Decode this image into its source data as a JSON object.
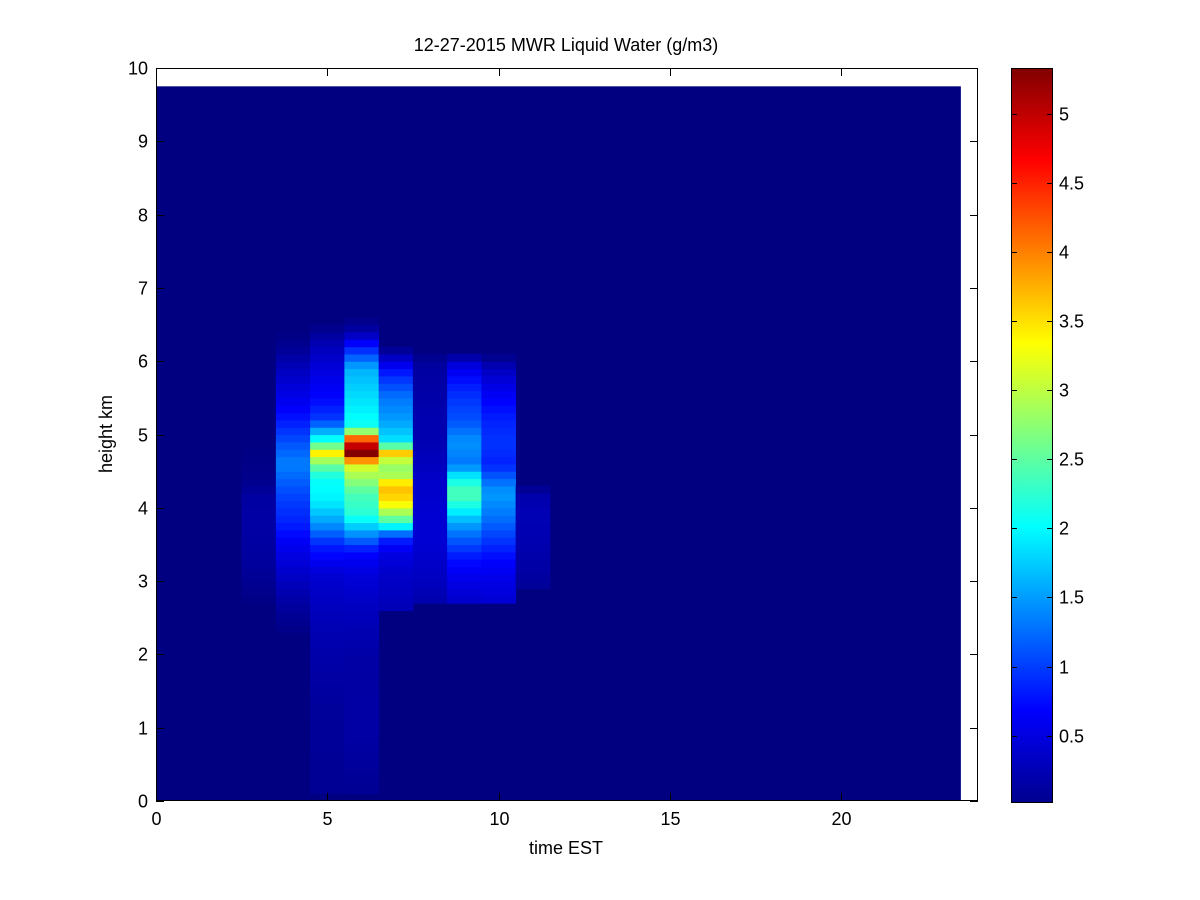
{
  "chart_data": {
    "type": "heatmap",
    "title": "12-27-2015 MWR Liquid Water (g/m3)",
    "xlabel": "time EST",
    "ylabel": "height km",
    "xlim": [
      0,
      24
    ],
    "ylim": [
      0,
      10
    ],
    "x_ticks": [
      0,
      5,
      10,
      15,
      20
    ],
    "y_ticks": [
      0,
      1,
      2,
      3,
      4,
      5,
      6,
      7,
      8,
      9,
      10
    ],
    "data_extent": {
      "x": [
        0,
        23.5
      ],
      "y": [
        0,
        9.75
      ]
    },
    "background_value": 0.02,
    "time_cells": [
      {
        "x": [
          2.5,
          3.5
        ],
        "profile": [
          [
            2.7,
            0.04
          ],
          [
            3.0,
            0.12
          ],
          [
            3.3,
            0.18
          ],
          [
            3.6,
            0.2
          ],
          [
            3.9,
            0.22
          ],
          [
            4.2,
            0.18
          ],
          [
            4.4,
            0.08
          ],
          [
            5.0,
            0.02
          ]
        ]
      },
      {
        "x": [
          3.5,
          4.5
        ],
        "profile": [
          [
            2.3,
            0.05
          ],
          [
            2.7,
            0.2
          ],
          [
            3.0,
            0.35
          ],
          [
            3.5,
            0.6
          ],
          [
            3.8,
            0.85
          ],
          [
            4.2,
            1.05
          ],
          [
            4.6,
            1.35
          ],
          [
            4.9,
            1.1
          ],
          [
            5.3,
            0.7
          ],
          [
            5.8,
            0.4
          ],
          [
            6.2,
            0.12
          ],
          [
            6.4,
            0.03
          ]
        ]
      },
      {
        "x": [
          4.5,
          5.5
        ],
        "profile": [
          [
            0.1,
            0.12
          ],
          [
            0.6,
            0.14
          ],
          [
            1.2,
            0.16
          ],
          [
            1.6,
            0.2
          ],
          [
            2.0,
            0.24
          ],
          [
            2.4,
            0.3
          ],
          [
            2.8,
            0.38
          ],
          [
            3.1,
            0.45
          ],
          [
            3.5,
            0.85
          ],
          [
            3.8,
            1.5
          ],
          [
            4.1,
            1.95
          ],
          [
            4.4,
            2.05
          ],
          [
            4.6,
            2.6
          ],
          [
            4.75,
            3.4
          ],
          [
            4.9,
            2.2
          ],
          [
            5.2,
            1.0
          ],
          [
            5.5,
            0.7
          ],
          [
            5.9,
            0.5
          ],
          [
            6.3,
            0.25
          ],
          [
            6.5,
            0.03
          ]
        ]
      },
      {
        "x": [
          5.5,
          6.5
        ],
        "profile": [
          [
            0.1,
            0.12
          ],
          [
            0.8,
            0.2
          ],
          [
            1.2,
            0.22
          ],
          [
            1.6,
            0.2
          ],
          [
            2.0,
            0.22
          ],
          [
            2.4,
            0.3
          ],
          [
            2.8,
            0.4
          ],
          [
            3.1,
            0.5
          ],
          [
            3.4,
            0.7
          ],
          [
            3.6,
            1.3
          ],
          [
            3.9,
            2.2
          ],
          [
            4.2,
            2.4
          ],
          [
            4.4,
            2.8
          ],
          [
            4.6,
            3.2
          ],
          [
            4.75,
            5.3
          ],
          [
            4.9,
            4.8
          ],
          [
            5.1,
            2.1
          ],
          [
            5.5,
            1.85
          ],
          [
            5.9,
            1.6
          ],
          [
            6.2,
            0.8
          ],
          [
            6.4,
            0.25
          ],
          [
            6.6,
            0.03
          ]
        ]
      },
      {
        "x": [
          6.5,
          7.5
        ],
        "profile": [
          [
            2.6,
            0.3
          ],
          [
            2.8,
            0.35
          ],
          [
            3.1,
            0.4
          ],
          [
            3.4,
            0.55
          ],
          [
            3.6,
            0.9
          ],
          [
            3.8,
            2.3
          ],
          [
            4.0,
            3.1
          ],
          [
            4.1,
            3.5
          ],
          [
            4.3,
            3.7
          ],
          [
            4.45,
            2.9
          ],
          [
            4.6,
            2.75
          ],
          [
            4.75,
            3.6
          ],
          [
            4.9,
            1.9
          ],
          [
            5.2,
            1.5
          ],
          [
            5.5,
            1.3
          ],
          [
            5.8,
            0.9
          ],
          [
            6.0,
            0.5
          ],
          [
            6.2,
            0.03
          ]
        ]
      },
      {
        "x": [
          7.5,
          8.5
        ],
        "profile": [
          [
            2.7,
            0.25
          ],
          [
            3.0,
            0.35
          ],
          [
            3.5,
            0.45
          ],
          [
            4.0,
            0.45
          ],
          [
            4.4,
            0.4
          ],
          [
            4.8,
            0.3
          ],
          [
            5.4,
            0.25
          ],
          [
            6.0,
            0.18
          ],
          [
            6.1,
            0.03
          ]
        ]
      },
      {
        "x": [
          8.5,
          9.5
        ],
        "profile": [
          [
            2.7,
            0.4
          ],
          [
            3.0,
            0.55
          ],
          [
            3.3,
            0.75
          ],
          [
            3.6,
            1.2
          ],
          [
            3.8,
            1.55
          ],
          [
            4.0,
            2.05
          ],
          [
            4.2,
            2.45
          ],
          [
            4.4,
            2.05
          ],
          [
            4.6,
            1.3
          ],
          [
            4.9,
            1.45
          ],
          [
            5.2,
            1.1
          ],
          [
            5.5,
            0.95
          ],
          [
            5.7,
            0.8
          ],
          [
            6.0,
            0.45
          ],
          [
            6.1,
            0.03
          ]
        ]
      },
      {
        "x": [
          9.5,
          10.5
        ],
        "profile": [
          [
            2.7,
            0.45
          ],
          [
            3.0,
            0.55
          ],
          [
            3.3,
            0.7
          ],
          [
            3.6,
            1.0
          ],
          [
            3.9,
            1.3
          ],
          [
            4.2,
            1.5
          ],
          [
            4.4,
            1.2
          ],
          [
            4.6,
            0.85
          ],
          [
            4.9,
            0.95
          ],
          [
            5.2,
            0.85
          ],
          [
            5.6,
            0.6
          ],
          [
            5.9,
            0.35
          ],
          [
            6.1,
            0.03
          ]
        ]
      },
      {
        "x": [
          10.5,
          11.5
        ],
        "profile": [
          [
            2.9,
            0.15
          ],
          [
            3.2,
            0.22
          ],
          [
            3.6,
            0.28
          ],
          [
            3.9,
            0.3
          ],
          [
            4.2,
            0.25
          ],
          [
            4.3,
            0.03
          ]
        ]
      }
    ],
    "colorbar": {
      "colormap": "jet",
      "range": [
        0.02,
        5.33
      ],
      "ticks": [
        0.5,
        1,
        1.5,
        2,
        2.5,
        3,
        3.5,
        4,
        4.5,
        5
      ],
      "tick_labels": [
        "0.5",
        "1",
        "1.5",
        "2",
        "2.5",
        "3",
        "3.5",
        "4",
        "4.5",
        "5"
      ]
    }
  }
}
